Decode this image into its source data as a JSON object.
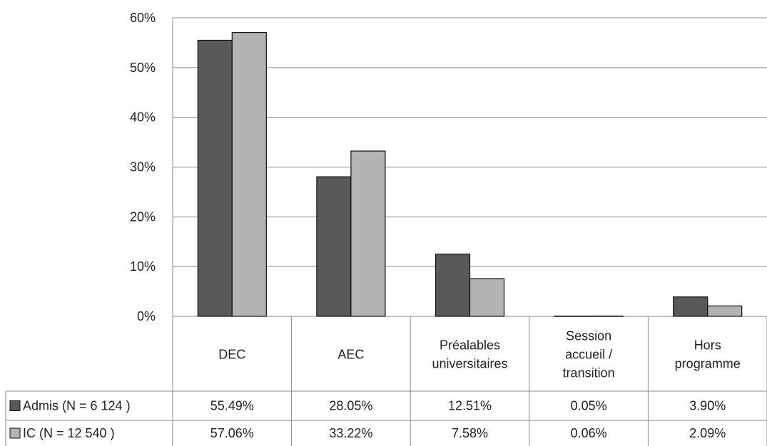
{
  "chart_data": {
    "type": "bar",
    "categories": [
      [
        "DEC"
      ],
      [
        "AEC"
      ],
      [
        "Préalables",
        "universitaires"
      ],
      [
        "Session",
        "accueil /",
        "transition"
      ],
      [
        "Hors",
        "programme"
      ]
    ],
    "series": [
      {
        "name": "Admis (N = 6 124 )",
        "values": [
          55.49,
          28.05,
          12.51,
          0.05,
          3.9
        ],
        "labels": [
          "55.49%",
          "28.05%",
          "12.51%",
          "0.05%",
          "3.90%"
        ],
        "color": "#595959"
      },
      {
        "name": "IC (N = 12 540 )",
        "values": [
          57.06,
          33.22,
          7.58,
          0.06,
          2.09
        ],
        "labels": [
          "57.06%",
          "33.22%",
          "7.58%",
          "0.06%",
          "2.09%"
        ],
        "color": "#b3b3b3"
      }
    ],
    "ylim": [
      0,
      60
    ],
    "yticks": [
      "0%",
      "10%",
      "20%",
      "30%",
      "40%",
      "50%",
      "60%"
    ],
    "grid": true,
    "legend": "data-table"
  }
}
